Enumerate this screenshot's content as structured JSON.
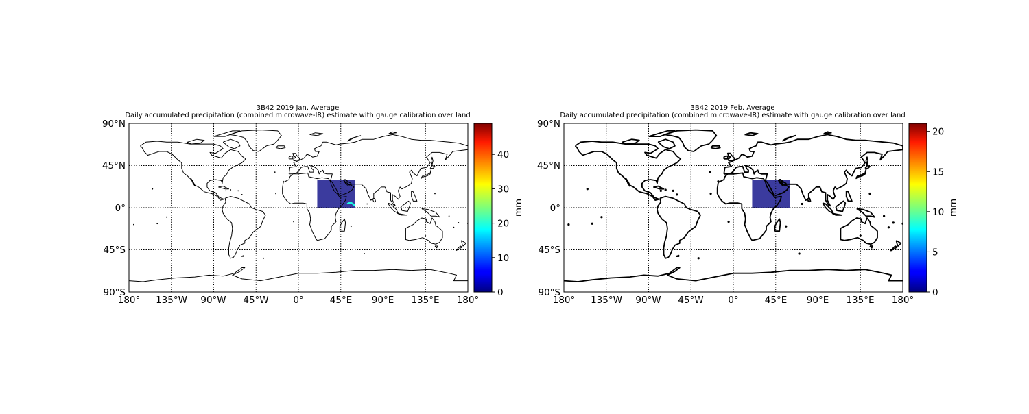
{
  "panels": [
    {
      "title_line1": "3B42 2019 Jan. Average",
      "title_line2": "Daily accumulated precipitation (combined microwave-IR) estimate with gauge calibration over land",
      "lat_ticks": [
        "90°N",
        "45°N",
        "0°",
        "45°S",
        "90°S"
      ],
      "lon_ticks": [
        "180°",
        "135°W",
        "90°W",
        "45°W",
        "0°",
        "45°E",
        "90°E",
        "135°E",
        "180°"
      ],
      "colorbar": {
        "label": "mm",
        "min": 0,
        "max": 49,
        "ticks": [
          "0",
          "10",
          "20",
          "30",
          "40"
        ],
        "tick_values": [
          0,
          10,
          20,
          30,
          40
        ]
      },
      "data_region": {
        "lon": [
          20,
          60
        ],
        "lat": [
          0,
          30
        ],
        "typical_value": 2
      }
    },
    {
      "title_line1": "3B42 2019 Feb. Average",
      "title_line2": "Daily accumulated precipitation (combined microwave-IR) estimate with gauge calibration over land",
      "lat_ticks": [
        "90°N",
        "45°N",
        "0°",
        "45°S",
        "90°S"
      ],
      "lon_ticks": [
        "180°",
        "135°W",
        "90°W",
        "45°W",
        "0°",
        "45°E",
        "90°E",
        "135°E",
        "180°"
      ],
      "colorbar": {
        "label": "mm",
        "min": 0,
        "max": 21,
        "ticks": [
          "0",
          "5",
          "10",
          "15",
          "20"
        ],
        "tick_values": [
          0,
          5,
          10,
          15,
          20
        ]
      },
      "data_region": {
        "lon": [
          20,
          60
        ],
        "lat": [
          0,
          30
        ],
        "typical_value": 1
      }
    }
  ],
  "colormap": "jet",
  "colors": {
    "coastline": "#000000",
    "gridline": "#000000",
    "data_fill": "#2a2a96"
  }
}
